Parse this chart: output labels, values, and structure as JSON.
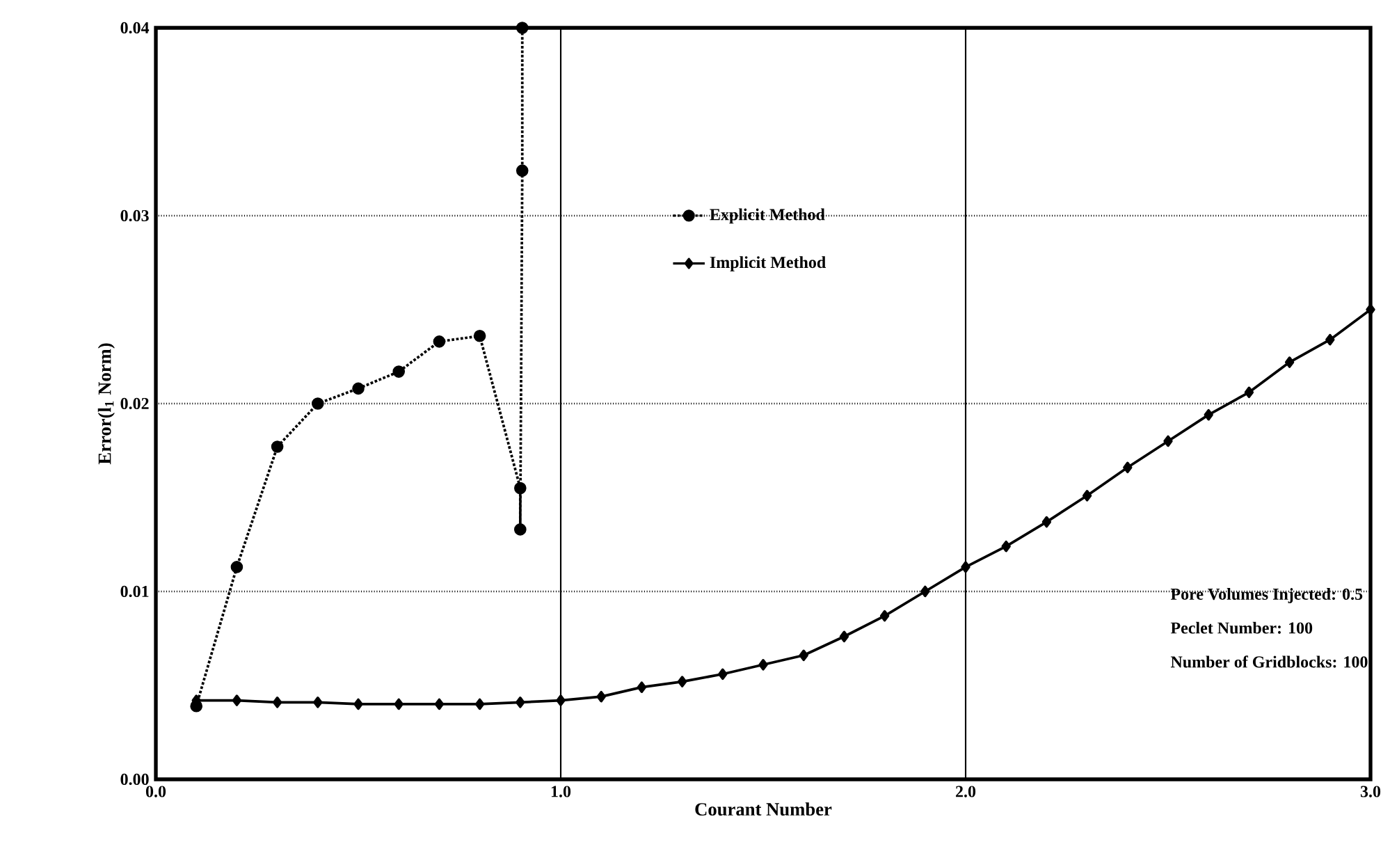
{
  "chart_data": {
    "type": "line",
    "xlabel": "Courant Number",
    "ylabel": "Error(l$_{1}$ Norm)",
    "xlim": [
      0.0,
      3.0
    ],
    "xticks": [
      {
        "value": 0,
        "label": "0.0"
      },
      {
        "value": 1,
        "label": "1.0"
      },
      {
        "value": 2,
        "label": "2.0"
      },
      {
        "value": 3,
        "label": "3.0"
      }
    ],
    "ylim": [
      0.0,
      0.04
    ],
    "yticks": [
      {
        "value": 0,
        "label": "0.00"
      },
      0.01,
      0.02,
      0.03,
      0.04
    ],
    "grid": true,
    "legend": "top right",
    "series": [
      {
        "name": "Explicit Method",
        "color": "#000000",
        "marker": "circle",
        "line_style": "dotted",
        "x": [
          0.1,
          0.2,
          0.3,
          0.4,
          0.5,
          0.6,
          0.7,
          0.8,
          0.9,
          0.9,
          0.905,
          0.905
        ],
        "values": [
          0.0039,
          0.0113,
          0.0177,
          0.02,
          0.0208,
          0.0217,
          0.0233,
          0.0236,
          0.0155,
          0.0133,
          0.0324,
          0.04
        ]
      },
      {
        "name": "Implicit Method",
        "color": "#000000",
        "marker": "diamond",
        "line_style": "solid",
        "x": [
          0.1,
          0.2,
          0.3,
          0.4,
          0.5,
          0.6,
          0.7,
          0.8,
          0.9,
          1.0,
          1.1,
          1.2,
          1.3,
          1.4,
          1.5,
          1.6,
          1.7,
          1.8,
          1.9,
          2.0,
          2.1,
          2.2,
          2.3,
          2.4,
          2.5,
          2.6,
          2.7,
          2.8,
          2.9,
          3.0
        ],
        "values": [
          0.0042,
          0.0042,
          0.0041,
          0.0041,
          0.004,
          0.004,
          0.004,
          0.004,
          0.0041,
          0.0042,
          0.0044,
          0.0049,
          0.0052,
          0.0056,
          0.0061,
          0.0066,
          0.0076,
          0.0087,
          0.01,
          0.0113,
          0.0124,
          0.0137,
          0.0151,
          0.0166,
          0.018,
          0.0194,
          0.0206,
          0.0222,
          0.0234,
          0.025
        ]
      }
    ],
    "annotations": [
      "Pore Volumes Injected: 0.5",
      "Peclet Number: 100",
      "Number of Gridblocks: 100"
    ]
  }
}
